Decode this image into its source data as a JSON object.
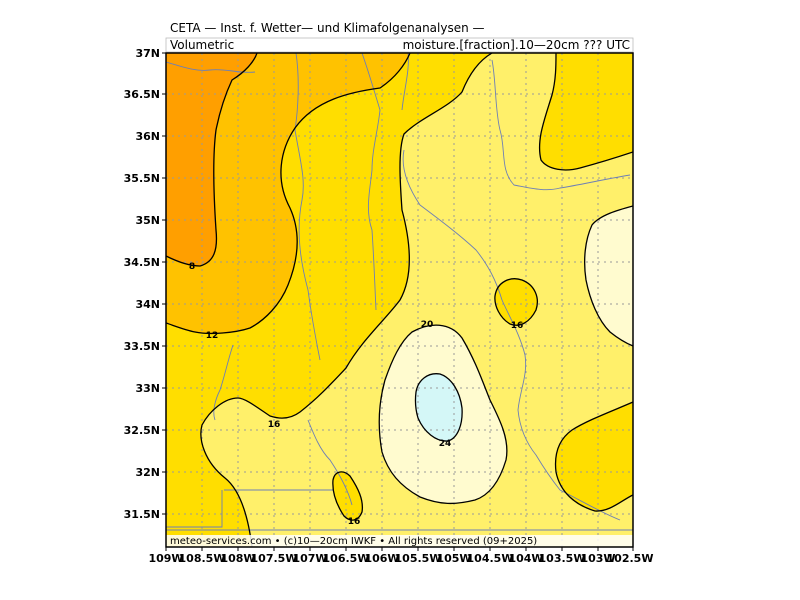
{
  "title": {
    "line1": "CETA — Inst. f. Wetter— und Klimafolgenanalysen —",
    "line2_left": "Volumetric",
    "line2_right": "moisture.[fraction].10—20cm ??? UTC"
  },
  "credit": "meteo-services.com • (c)10—20cm IWKF • All rights reserved (09+2025)",
  "x_ticks": [
    "109W",
    "108.5W",
    "108W",
    "107.5W",
    "107W",
    "106.5W",
    "106W",
    "105.5W",
    "105W",
    "104.5W",
    "104W",
    "103.5W",
    "103W",
    "102.5W"
  ],
  "y_ticks": [
    "37N",
    "36.5N",
    "36N",
    "35.5N",
    "35N",
    "34.5N",
    "34N",
    "33.5N",
    "33N",
    "32.5N",
    "32N",
    "31.5N"
  ],
  "contour_labels": [
    "8",
    "12",
    "16",
    "20",
    "16",
    "24",
    "16"
  ],
  "colors": {
    "level_lt8": "#ff9f00",
    "level_8_12": "#ffc200",
    "level_12_16": "#ffde00",
    "level_16_20": "#fff06a",
    "level_20_24": "#fffbcf",
    "level_gt24": "#d4f7f7",
    "contour": "#000000",
    "border": "#6d7fb6",
    "grid": "#9a9a9a"
  },
  "chart_data": {
    "type": "map",
    "variable": "Volumetric moisture [fraction] 10—20cm",
    "x_range": [
      "109W",
      "102.5W"
    ],
    "y_range": [
      "31.1N",
      "37N"
    ],
    "contour_levels": [
      8,
      12,
      16,
      20,
      24
    ],
    "grid": true
  }
}
